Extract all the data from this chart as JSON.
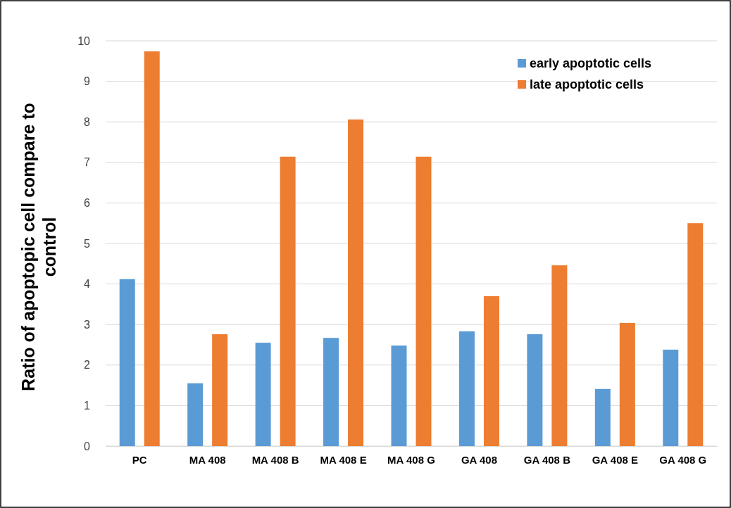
{
  "chart_data": {
    "type": "bar",
    "ylabel": "Ratio of apoptopic cell compare to control",
    "categories": [
      "PC",
      "MA 408",
      "MA 408 B",
      "MA 408 E",
      "MA 408 G",
      "GA 408",
      "GA 408 B",
      "GA 408 E",
      "GA 408 G"
    ],
    "series": [
      {
        "name": "early apoptotic cells",
        "color": "#5b9bd5",
        "values": [
          4.12,
          1.55,
          2.55,
          2.67,
          2.48,
          2.83,
          2.76,
          1.41,
          2.38
        ]
      },
      {
        "name": "late apoptotic cells",
        "color": "#ed7d31",
        "values": [
          9.74,
          2.76,
          7.14,
          8.06,
          7.14,
          3.7,
          4.46,
          3.04,
          5.5
        ]
      }
    ],
    "ylim": [
      0,
      10
    ],
    "yticks": [
      0,
      1,
      2,
      3,
      4,
      5,
      6,
      7,
      8,
      9,
      10
    ],
    "grid": "y",
    "legend": "top right"
  }
}
